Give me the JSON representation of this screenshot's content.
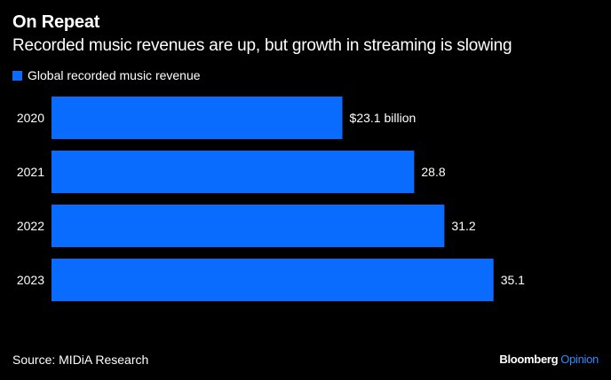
{
  "header": {
    "title": "On Repeat",
    "subtitle": "Recorded music revenues are up, but growth in streaming is slowing"
  },
  "footer": {
    "source": "Source: MIDiA Research",
    "brand_main": "Bloomberg",
    "brand_secondary": "Opinion",
    "brand_secondary_color": "#2a8cff"
  },
  "chart_data": {
    "type": "bar",
    "orientation": "horizontal",
    "categories": [
      "2020",
      "2021",
      "2022",
      "2023"
    ],
    "series": [
      {
        "name": "Global recorded music revenue",
        "values": [
          23.1,
          28.8,
          31.2,
          35.1
        ],
        "color": "#0a6cff"
      }
    ],
    "data_labels": [
      "$23.1 billion",
      "28.8",
      "31.2",
      "35.1"
    ],
    "title": "On Repeat",
    "subtitle": "Recorded music revenues are up, but growth in streaming is slowing",
    "xlabel": "",
    "ylabel": "",
    "grid": false,
    "legend_position": "top-left"
  }
}
